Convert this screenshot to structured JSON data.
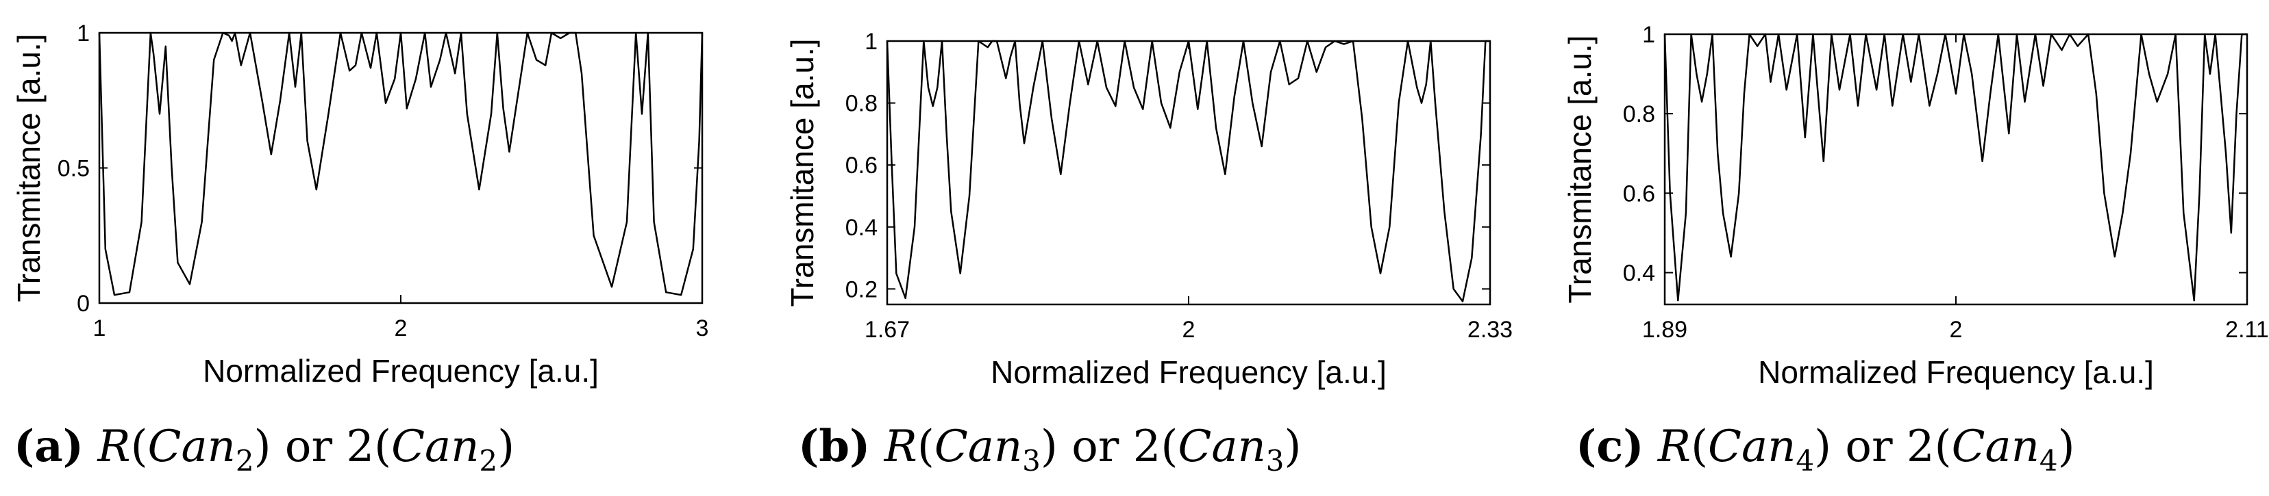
{
  "chart_data": [
    {
      "type": "line",
      "panel": "a",
      "caption": {
        "letter": "(a)",
        "func": "R",
        "open": "(",
        "base": "Can",
        "sub": "2",
        "close": ")",
        "or": "or",
        "num": "2"
      },
      "xlabel": "Normalized Frequency [a.u.]",
      "ylabel": "Transmitance [a.u.]",
      "xlim": [
        1,
        3
      ],
      "ylim": [
        0,
        1
      ],
      "xticks": [
        "1",
        "2",
        "3"
      ],
      "xtick_values": [
        1,
        2,
        3
      ],
      "yticks": [
        "0",
        "0.5",
        "1"
      ],
      "ytick_values": [
        0,
        0.5,
        1
      ],
      "grid": false,
      "series": [
        {
          "x": [
            1.0,
            1.02,
            1.05,
            1.1,
            1.14,
            1.17,
            1.18,
            1.2,
            1.22,
            1.24,
            1.26,
            1.3,
            1.34,
            1.38,
            1.41,
            1.43,
            1.44,
            1.45,
            1.47,
            1.5,
            1.54,
            1.57,
            1.6,
            1.63,
            1.65,
            1.67,
            1.69,
            1.72,
            1.76,
            1.8,
            1.83,
            1.85,
            1.87,
            1.9,
            1.92,
            1.95,
            1.98,
            2.0,
            2.02,
            2.05,
            2.08,
            2.1,
            2.13,
            2.15,
            2.18,
            2.2,
            2.22,
            2.26,
            2.3,
            2.32,
            2.34,
            2.36,
            2.39,
            2.42,
            2.45,
            2.48,
            2.5,
            2.53,
            2.56,
            2.58,
            2.6,
            2.64,
            2.7,
            2.75,
            2.78,
            2.8,
            2.82,
            2.84,
            2.88,
            2.93,
            2.97,
            2.99,
            3.0
          ],
          "y": [
            1.0,
            0.2,
            0.03,
            0.04,
            0.3,
            1.0,
            0.92,
            0.7,
            0.95,
            0.5,
            0.15,
            0.07,
            0.3,
            0.9,
            1.0,
            0.99,
            0.97,
            1.0,
            0.88,
            1.0,
            0.75,
            0.55,
            0.75,
            1.0,
            0.8,
            1.0,
            0.6,
            0.42,
            0.7,
            1.0,
            0.86,
            0.88,
            1.0,
            0.87,
            1.0,
            0.74,
            0.83,
            1.0,
            0.72,
            0.83,
            1.0,
            0.8,
            0.9,
            1.0,
            0.85,
            1.0,
            0.7,
            0.42,
            0.7,
            1.0,
            0.72,
            0.56,
            0.78,
            1.0,
            0.9,
            0.88,
            1.0,
            0.98,
            1.0,
            1.0,
            0.85,
            0.25,
            0.06,
            0.3,
            1.0,
            0.7,
            1.0,
            0.3,
            0.04,
            0.03,
            0.2,
            0.6,
            1.0
          ]
        }
      ]
    },
    {
      "type": "line",
      "panel": "b",
      "caption": {
        "letter": "(b)",
        "func": "R",
        "open": "(",
        "base": "Can",
        "sub": "3",
        "close": ")",
        "or": "or",
        "num": "2"
      },
      "xlabel": "Normalized Frequency [a.u.]",
      "ylabel": "Transmitance [a.u.]",
      "xlim": [
        1.67,
        2.33
      ],
      "ylim": [
        0.15,
        1
      ],
      "xticks": [
        "1.67",
        "2",
        "2.33"
      ],
      "xtick_values": [
        1.67,
        2.0,
        2.33
      ],
      "yticks": [
        "0.2",
        "0.4",
        "0.6",
        "0.8",
        "1"
      ],
      "ytick_values": [
        0.2,
        0.4,
        0.6,
        0.8,
        1.0
      ],
      "grid": false,
      "series": [
        {
          "x": [
            1.67,
            1.675,
            1.68,
            1.69,
            1.7,
            1.71,
            1.715,
            1.72,
            1.725,
            1.73,
            1.735,
            1.74,
            1.75,
            1.76,
            1.77,
            1.78,
            1.785,
            1.79,
            1.8,
            1.805,
            1.81,
            1.815,
            1.82,
            1.83,
            1.84,
            1.85,
            1.86,
            1.87,
            1.88,
            1.89,
            1.9,
            1.91,
            1.92,
            1.93,
            1.94,
            1.95,
            1.96,
            1.97,
            1.98,
            1.99,
            2.0,
            2.01,
            2.02,
            2.03,
            2.04,
            2.05,
            2.06,
            2.07,
            2.08,
            2.09,
            2.1,
            2.11,
            2.12,
            2.13,
            2.14,
            2.15,
            2.16,
            2.17,
            2.18,
            2.19,
            2.2,
            2.21,
            2.22,
            2.23,
            2.24,
            2.25,
            2.255,
            2.26,
            2.265,
            2.27,
            2.28,
            2.29,
            2.3,
            2.31,
            2.32,
            2.325,
            2.33
          ],
          "y": [
            1.0,
            0.6,
            0.25,
            0.17,
            0.4,
            1.0,
            0.85,
            0.79,
            0.85,
            1.0,
            0.7,
            0.45,
            0.25,
            0.5,
            1.0,
            0.98,
            1.0,
            1.0,
            0.88,
            0.95,
            1.0,
            0.8,
            0.67,
            0.85,
            1.0,
            0.75,
            0.57,
            0.8,
            1.0,
            0.86,
            1.0,
            0.85,
            0.79,
            1.0,
            0.85,
            0.78,
            1.0,
            0.8,
            0.72,
            0.9,
            1.0,
            0.78,
            1.0,
            0.72,
            0.57,
            0.82,
            1.0,
            0.8,
            0.66,
            0.9,
            1.0,
            0.86,
            0.88,
            1.0,
            0.9,
            0.98,
            1.0,
            0.99,
            1.0,
            0.75,
            0.4,
            0.25,
            0.4,
            0.8,
            1.0,
            0.85,
            0.8,
            0.86,
            1.0,
            0.8,
            0.45,
            0.2,
            0.16,
            0.3,
            0.7,
            1.0,
            1.0
          ]
        }
      ]
    },
    {
      "type": "line",
      "panel": "c",
      "caption": {
        "letter": "(c)",
        "func": "R",
        "open": "(",
        "base": "Can",
        "sub": "4",
        "close": ")",
        "or": "or",
        "num": "2"
      },
      "xlabel": "Normalized Frequency [a.u.]",
      "ylabel": "Transmitance [a.u.]",
      "xlim": [
        1.89,
        2.11
      ],
      "ylim": [
        0.32,
        1
      ],
      "xticks": [
        "1.89",
        "2",
        "2.11"
      ],
      "xtick_values": [
        1.89,
        2.0,
        2.11
      ],
      "yticks": [
        "0.4",
        "0.6",
        "0.8",
        "1"
      ],
      "ytick_values": [
        0.4,
        0.6,
        0.8,
        1.0
      ],
      "grid": false,
      "series": [
        {
          "x": [
            1.89,
            1.892,
            1.895,
            1.898,
            1.9,
            1.902,
            1.904,
            1.906,
            1.908,
            1.91,
            1.912,
            1.915,
            1.918,
            1.92,
            1.922,
            1.925,
            1.928,
            1.93,
            1.933,
            1.936,
            1.94,
            1.943,
            1.946,
            1.95,
            1.953,
            1.956,
            1.96,
            1.963,
            1.966,
            1.97,
            1.973,
            1.976,
            1.98,
            1.983,
            1.986,
            1.99,
            1.993,
            1.996,
            2.0,
            2.003,
            2.006,
            2.01,
            2.013,
            2.016,
            2.02,
            2.023,
            2.026,
            2.03,
            2.033,
            2.036,
            2.04,
            2.043,
            2.046,
            2.05,
            2.053,
            2.056,
            2.06,
            2.063,
            2.066,
            2.07,
            2.073,
            2.076,
            2.08,
            2.083,
            2.086,
            2.09,
            2.092,
            2.094,
            2.096,
            2.098,
            2.1,
            2.102,
            2.104,
            2.106,
            2.108,
            2.11
          ],
          "y": [
            1.0,
            0.6,
            0.33,
            0.55,
            1.0,
            0.9,
            0.83,
            0.9,
            1.0,
            0.7,
            0.55,
            0.44,
            0.6,
            0.85,
            1.0,
            0.97,
            1.0,
            0.88,
            1.0,
            0.86,
            1.0,
            0.74,
            1.0,
            0.68,
            1.0,
            0.86,
            1.0,
            0.82,
            1.0,
            0.86,
            1.0,
            0.82,
            1.0,
            0.88,
            1.0,
            0.82,
            0.9,
            1.0,
            0.85,
            1.0,
            0.9,
            0.68,
            0.85,
            1.0,
            0.75,
            1.0,
            0.83,
            1.0,
            0.87,
            1.0,
            0.96,
            1.0,
            0.97,
            1.0,
            0.85,
            0.6,
            0.44,
            0.55,
            0.7,
            1.0,
            0.9,
            0.83,
            0.9,
            1.0,
            0.55,
            0.33,
            0.6,
            1.0,
            0.9,
            1.0,
            0.85,
            0.7,
            0.5,
            0.8,
            1.0,
            1.0
          ]
        }
      ]
    }
  ]
}
